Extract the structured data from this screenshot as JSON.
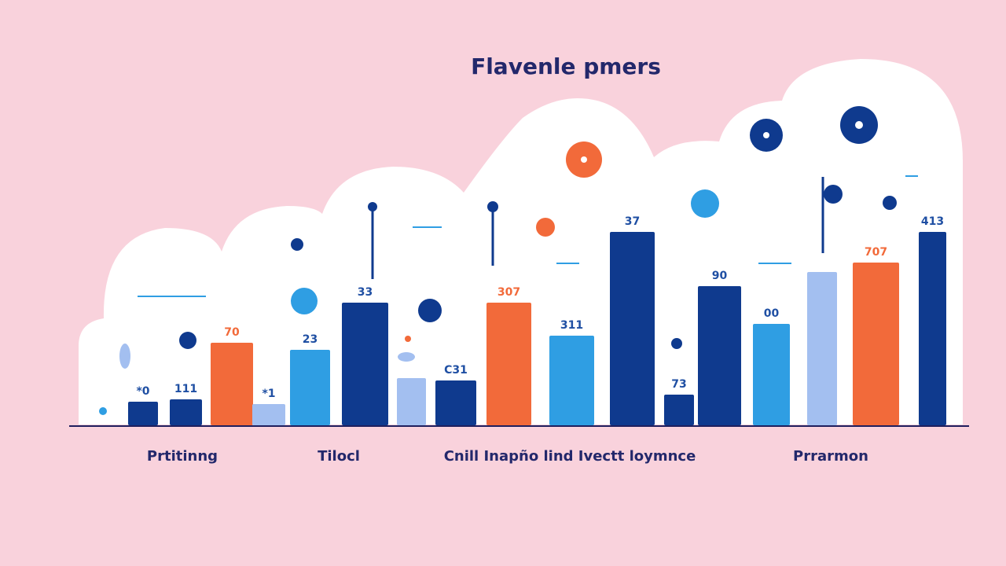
{
  "title": "Flavenle pmers",
  "colors": {
    "background": "#f9d2dc",
    "panel": "#ffffff",
    "navy": "#0f3a8e",
    "blue": "#2f9ee3",
    "light": "#a3bff0",
    "orange": "#f26a3a",
    "text": "#23286b"
  },
  "chart_data": {
    "type": "bar",
    "title": "Flavenle pmers",
    "groups": [
      "Prtitinng",
      "Tilocl",
      "Cnill Inapño lind Ivectt loymnce",
      "Prrarmon"
    ],
    "bars": [
      {
        "label": "*0",
        "value": 10,
        "color": "navy"
      },
      {
        "label": "111",
        "value": 11,
        "color": "navy"
      },
      {
        "label": "70",
        "value": 35,
        "color": "orange"
      },
      {
        "label": "*1",
        "value": 9,
        "color": "light"
      },
      {
        "label": "23",
        "value": 32,
        "color": "blue"
      },
      {
        "label": "33",
        "value": 52,
        "color": "navy"
      },
      {
        "label": "",
        "value": 20,
        "color": "light"
      },
      {
        "label": "C31",
        "value": 19,
        "color": "navy"
      },
      {
        "label": "307",
        "value": 52,
        "color": "orange"
      },
      {
        "label": "311",
        "value": 38,
        "color": "blue"
      },
      {
        "label": "37",
        "value": 82,
        "color": "navy"
      },
      {
        "label": "73",
        "value": 13,
        "color": "navy"
      },
      {
        "label": "90",
        "value": 59,
        "color": "navy"
      },
      {
        "label": "00",
        "value": 43,
        "color": "blue"
      },
      {
        "label": "",
        "value": 65,
        "color": "light"
      },
      {
        "label": "707",
        "value": 69,
        "color": "orange"
      },
      {
        "label": "413",
        "value": 82,
        "color": "navy"
      }
    ],
    "ylim": [
      0,
      100
    ]
  }
}
